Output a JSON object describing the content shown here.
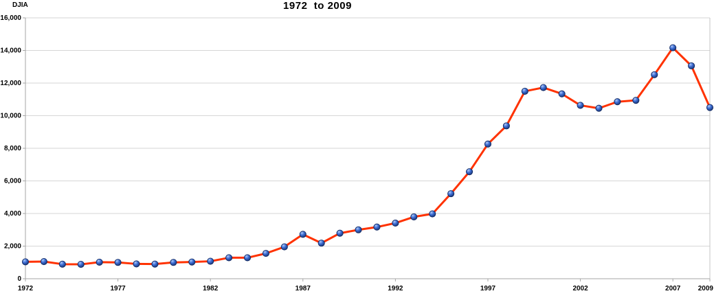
{
  "title": "1972  to 2009",
  "y_axis_label": "DJIA",
  "chart_data": {
    "type": "line",
    "title": "1972 to 2009",
    "ylabel": "DJIA",
    "xlabel": "",
    "legend": "none",
    "grid": "horizontal",
    "xlim": [
      1972,
      2009
    ],
    "ylim": [
      0,
      16000
    ],
    "x_tick_labels": [
      "1972",
      "1977",
      "1982",
      "1987",
      "1992",
      "1997",
      "2002",
      "2007",
      "2009"
    ],
    "y_ticks": [
      0,
      2000,
      4000,
      6000,
      8000,
      10000,
      12000,
      14000,
      16000
    ],
    "x": [
      1972,
      1973,
      1974,
      1975,
      1976,
      1977,
      1978,
      1979,
      1980,
      1981,
      1982,
      1983,
      1984,
      1985,
      1986,
      1987,
      1988,
      1989,
      1990,
      1991,
      1992,
      1993,
      1994,
      1995,
      1996,
      1997,
      1998,
      1999,
      2000,
      2001,
      2002,
      2003,
      2004,
      2005,
      2006,
      2007,
      2008,
      2009
    ],
    "series": [
      {
        "name": "DJIA",
        "values": [
          1036,
          1052,
          892,
          882,
          1015,
          1000,
          908,
          898,
          1000,
          1024,
          1071,
          1287,
          1287,
          1553,
          1956,
          2722,
          2184,
          2791,
          3000,
          3169,
          3413,
          3794,
          3978,
          5216,
          6561,
          8259,
          9374,
          11497,
          11723,
          11338,
          10635,
          10454,
          10854,
          10941,
          12511,
          14165,
          13058,
          10500
        ]
      }
    ],
    "colors": {
      "line": "#FF3200",
      "marker_highlight": "#AFCAF8",
      "marker_body": "#3D6DD4",
      "marker_dark": "#16306E",
      "marker_edge": "#122A63",
      "gridline": "#D6D6D6",
      "axis": "#A6A6A6",
      "right_border": "#C4C4C4"
    }
  }
}
